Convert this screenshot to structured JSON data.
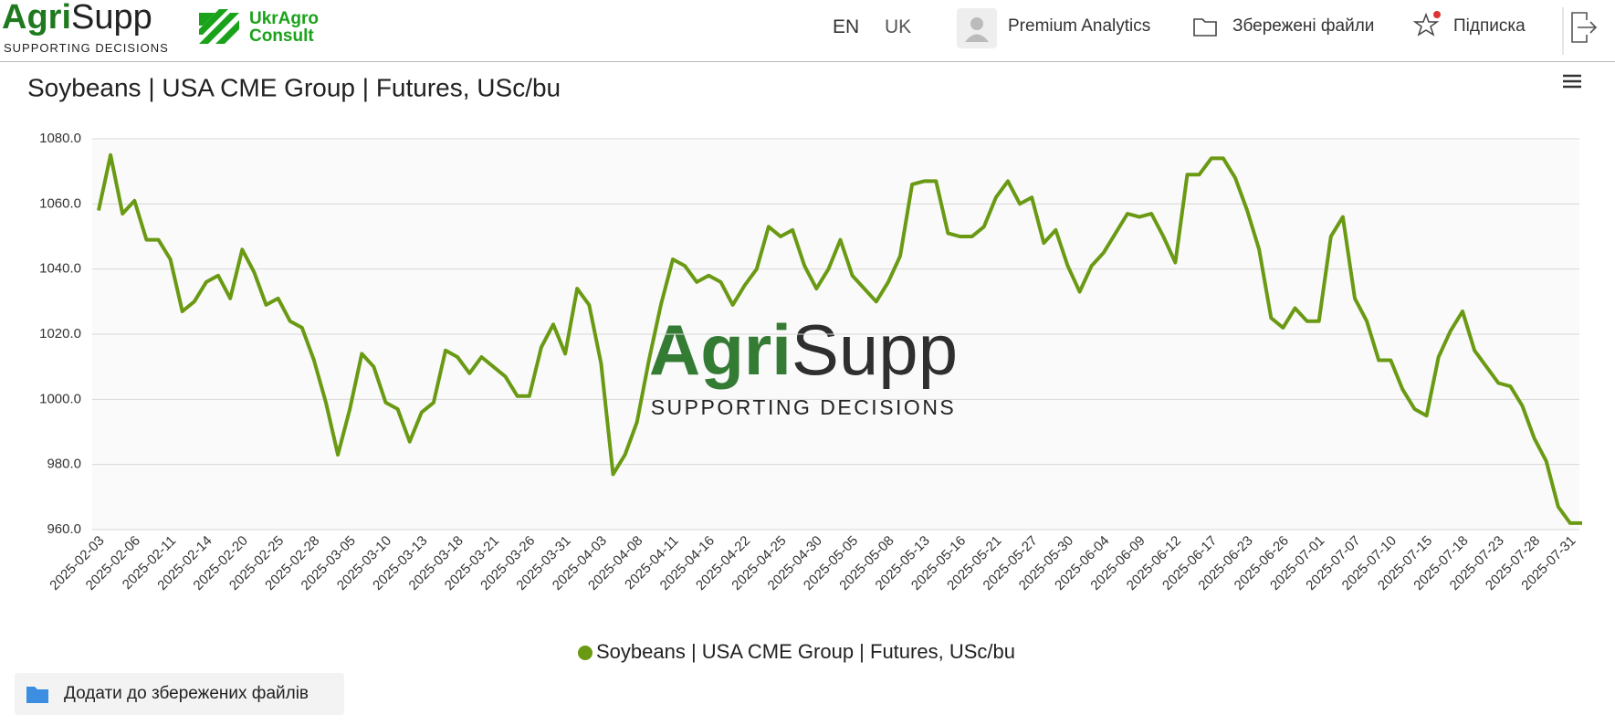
{
  "header": {
    "logo": {
      "part1": "Agri",
      "part2": "Supp",
      "tagline": "SUPPORTING DECISIONS"
    },
    "partner_logo": {
      "line1": "UkrAgro",
      "line2": "Consult"
    },
    "languages": [
      "EN",
      "UK"
    ],
    "premium": "Premium Analytics",
    "saved_files": "Збережені файли",
    "subscription": "Підписка"
  },
  "watermark": {
    "part1": "Agri",
    "part2": "Supp",
    "tagline": "SUPPORTING DECISIONS"
  },
  "chart_data": {
    "type": "line",
    "title": "Soybeans | USA CME Group | Futures, USc/bu",
    "categories": [
      "2025-02-03",
      null,
      null,
      "2025-02-06",
      null,
      null,
      "2025-02-11",
      null,
      null,
      "2025-02-14",
      null,
      null,
      "2025-02-20",
      null,
      null,
      "2025-02-25",
      null,
      null,
      "2025-02-28",
      null,
      null,
      "2025-03-05",
      null,
      null,
      "2025-03-10",
      null,
      null,
      "2025-03-13",
      null,
      null,
      "2025-03-18",
      null,
      null,
      "2025-03-21",
      null,
      null,
      "2025-03-26",
      null,
      null,
      "2025-03-31",
      null,
      null,
      "2025-04-03",
      null,
      null,
      "2025-04-08",
      null,
      null,
      "2025-04-11",
      null,
      null,
      "2025-04-16",
      null,
      null,
      "2025-04-22",
      null,
      null,
      "2025-04-25",
      null,
      null,
      "2025-04-30",
      null,
      null,
      "2025-05-05",
      null,
      null,
      "2025-05-08",
      null,
      null,
      "2025-05-13",
      null,
      null,
      "2025-05-16",
      null,
      null,
      "2025-05-21",
      null,
      null,
      "2025-05-27",
      null,
      null,
      "2025-05-30",
      null,
      null,
      "2025-06-04",
      null,
      null,
      "2025-06-09",
      null,
      null,
      "2025-06-12",
      null,
      null,
      "2025-06-17",
      null,
      null,
      "2025-06-23",
      null,
      null,
      "2025-06-26",
      null,
      null,
      "2025-07-01",
      null,
      null,
      "2025-07-07",
      null,
      null,
      "2025-07-10",
      null,
      null,
      "2025-07-15",
      null,
      null,
      "2025-07-18",
      null,
      null,
      "2025-07-23",
      null,
      null,
      "2025-07-28",
      null,
      null,
      "2025-07-31",
      null
    ],
    "series": [
      {
        "name": "Soybeans | USA CME Group | Futures, USc/bu",
        "color": "#6a9a13",
        "values": [
          1058,
          1075,
          1057,
          1061,
          1049,
          1049,
          1043,
          1027,
          1030,
          1036,
          1038,
          1031,
          1046,
          1039,
          1029,
          1031,
          1024,
          1022,
          1012,
          999,
          983,
          997,
          1014,
          1010,
          999,
          997,
          987,
          996,
          999,
          1015,
          1013,
          1008,
          1013,
          1010,
          1007,
          1001,
          1001,
          1016,
          1023,
          1014,
          1034,
          1029,
          1011,
          977,
          983,
          993,
          1012,
          1029,
          1043,
          1041,
          1036,
          1038,
          1036,
          1029,
          1035,
          1040,
          1053,
          1050,
          1052,
          1041,
          1034,
          1040,
          1049,
          1038,
          1034,
          1030,
          1036,
          1044,
          1066,
          1067,
          1067,
          1051,
          1050,
          1050,
          1053,
          1062,
          1067,
          1060,
          1062,
          1048,
          1052,
          1041,
          1033,
          1041,
          1045,
          1051,
          1057,
          1056,
          1057,
          1050,
          1042,
          1069,
          1069,
          1074,
          1074,
          1068,
          1058,
          1046,
          1025,
          1022,
          1028,
          1024,
          1024,
          1050,
          1056,
          1031,
          1024,
          1012,
          1012,
          1003,
          997,
          995,
          1013,
          1021,
          1027,
          1015,
          1010,
          1005,
          1004,
          998,
          988,
          981,
          967,
          962,
          962
        ]
      }
    ],
    "ylim": [
      960,
      1080
    ],
    "yticks": [
      {
        "value": 960,
        "label": "960.0"
      },
      {
        "value": 980,
        "label": "980.0"
      },
      {
        "value": 1000,
        "label": "1000.0"
      },
      {
        "value": 1020,
        "label": "1020.0"
      },
      {
        "value": 1040,
        "label": "1040.0"
      },
      {
        "value": 1060,
        "label": "1060.0"
      },
      {
        "value": 1080,
        "label": "1080.0"
      }
    ],
    "grid": true,
    "legend": "bottom"
  },
  "footer": {
    "save_button": "Додати до збережених файлів"
  }
}
